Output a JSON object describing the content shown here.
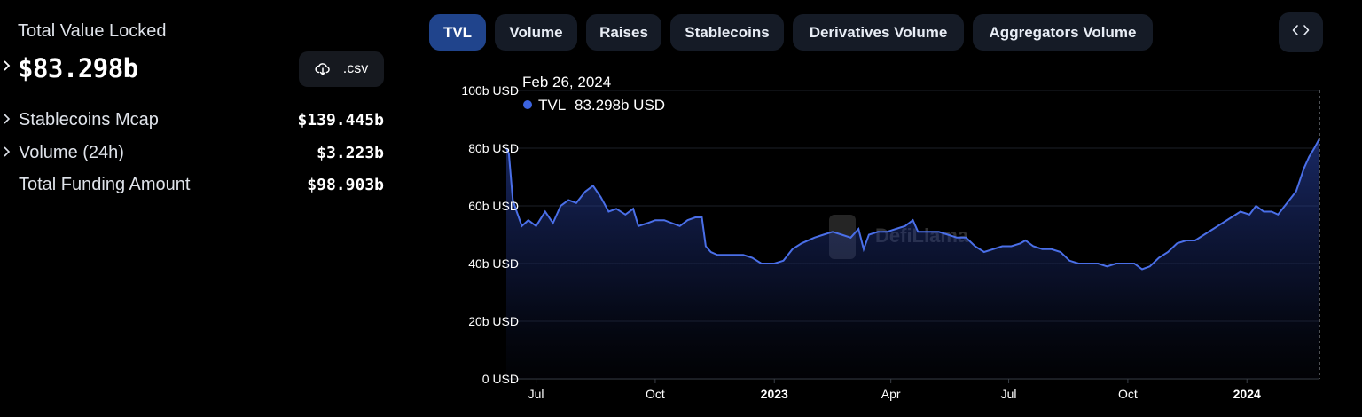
{
  "left": {
    "tvl_label": "Total Value Locked",
    "tvl_value": "$83.298b",
    "csv_label": ".csv",
    "metrics": [
      {
        "label": "Stablecoins Mcap",
        "value": "$139.445b",
        "expandable": true
      },
      {
        "label": "Volume (24h)",
        "value": "$3.223b",
        "expandable": true
      },
      {
        "label": "Total Funding Amount",
        "value": "$98.903b",
        "expandable": false
      }
    ]
  },
  "tabs": [
    {
      "label": "TVL",
      "active": true
    },
    {
      "label": "Volume",
      "active": false
    },
    {
      "label": "Raises",
      "active": false
    },
    {
      "label": "Stablecoins",
      "active": false
    },
    {
      "label": "Derivatives Volume",
      "active": false
    },
    {
      "label": "Aggregators Volume",
      "active": false
    }
  ],
  "icons": {
    "csv": "download-icon",
    "embed": "code-icon",
    "expand": "chevron-right-icon"
  },
  "colors": {
    "accent": "#3b63e0",
    "line": "#4a6fe8",
    "active_tab": "#20448c",
    "tab_bg": "#151b26"
  },
  "tooltip": {
    "date": "Feb 26, 2024",
    "series": "TVL",
    "value": "83.298b USD"
  },
  "watermark": "DefiLlama",
  "chart_data": {
    "type": "area",
    "series_name": "TVL",
    "y_unit": "USD",
    "ylim": [
      0,
      100
    ],
    "y_ticks": [
      "0 USD",
      "20b USD",
      "40b USD",
      "60b USD",
      "80b USD",
      "100b USD"
    ],
    "x_ticks": [
      {
        "label": "Jul",
        "bold": false
      },
      {
        "label": "Oct",
        "bold": false
      },
      {
        "label": "2023",
        "bold": true
      },
      {
        "label": "Apr",
        "bold": false
      },
      {
        "label": "Jul",
        "bold": false
      },
      {
        "label": "Oct",
        "bold": false
      },
      {
        "label": "2024",
        "bold": true
      }
    ],
    "x_start": "2022-06-08",
    "x_end": "2024-02-26",
    "grid": true,
    "points": [
      [
        "2022-06-08",
        80
      ],
      [
        "2022-06-10",
        78
      ],
      [
        "2022-06-13",
        62
      ],
      [
        "2022-06-16",
        58
      ],
      [
        "2022-06-20",
        53
      ],
      [
        "2022-06-25",
        55
      ],
      [
        "2022-07-01",
        53
      ],
      [
        "2022-07-08",
        58
      ],
      [
        "2022-07-14",
        54
      ],
      [
        "2022-07-20",
        60
      ],
      [
        "2022-07-26",
        62
      ],
      [
        "2022-08-01",
        61
      ],
      [
        "2022-08-08",
        65
      ],
      [
        "2022-08-14",
        67
      ],
      [
        "2022-08-20",
        63
      ],
      [
        "2022-08-26",
        58
      ],
      [
        "2022-09-01",
        59
      ],
      [
        "2022-09-08",
        57
      ],
      [
        "2022-09-14",
        59
      ],
      [
        "2022-09-18",
        53
      ],
      [
        "2022-09-25",
        54
      ],
      [
        "2022-10-01",
        55
      ],
      [
        "2022-10-08",
        55
      ],
      [
        "2022-10-14",
        54
      ],
      [
        "2022-10-20",
        53
      ],
      [
        "2022-10-26",
        55
      ],
      [
        "2022-11-01",
        56
      ],
      [
        "2022-11-06",
        56
      ],
      [
        "2022-11-09",
        46
      ],
      [
        "2022-11-13",
        44
      ],
      [
        "2022-11-18",
        43
      ],
      [
        "2022-11-25",
        43
      ],
      [
        "2022-12-01",
        43
      ],
      [
        "2022-12-08",
        43
      ],
      [
        "2022-12-15",
        42
      ],
      [
        "2022-12-22",
        40
      ],
      [
        "2023-01-01",
        40
      ],
      [
        "2023-01-08",
        41
      ],
      [
        "2023-01-15",
        45
      ],
      [
        "2023-01-22",
        47
      ],
      [
        "2023-02-01",
        49
      ],
      [
        "2023-02-08",
        50
      ],
      [
        "2023-02-15",
        51
      ],
      [
        "2023-02-22",
        50
      ],
      [
        "2023-03-01",
        49
      ],
      [
        "2023-03-07",
        52
      ],
      [
        "2023-03-11",
        45
      ],
      [
        "2023-03-15",
        50
      ],
      [
        "2023-03-22",
        51
      ],
      [
        "2023-03-29",
        51
      ],
      [
        "2023-04-05",
        52
      ],
      [
        "2023-04-12",
        53
      ],
      [
        "2023-04-18",
        55
      ],
      [
        "2023-04-22",
        51
      ],
      [
        "2023-05-01",
        51
      ],
      [
        "2023-05-08",
        51
      ],
      [
        "2023-05-15",
        50
      ],
      [
        "2023-05-22",
        49
      ],
      [
        "2023-05-29",
        49
      ],
      [
        "2023-06-05",
        46
      ],
      [
        "2023-06-12",
        44
      ],
      [
        "2023-06-19",
        45
      ],
      [
        "2023-06-26",
        46
      ],
      [
        "2023-07-03",
        46
      ],
      [
        "2023-07-10",
        47
      ],
      [
        "2023-07-14",
        48
      ],
      [
        "2023-07-20",
        46
      ],
      [
        "2023-07-27",
        45
      ],
      [
        "2023-08-03",
        45
      ],
      [
        "2023-08-10",
        44
      ],
      [
        "2023-08-17",
        41
      ],
      [
        "2023-08-24",
        40
      ],
      [
        "2023-09-01",
        40
      ],
      [
        "2023-09-08",
        40
      ],
      [
        "2023-09-15",
        39
      ],
      [
        "2023-09-22",
        40
      ],
      [
        "2023-09-29",
        40
      ],
      [
        "2023-10-06",
        40
      ],
      [
        "2023-10-12",
        38
      ],
      [
        "2023-10-18",
        39
      ],
      [
        "2023-10-25",
        42
      ],
      [
        "2023-11-01",
        44
      ],
      [
        "2023-11-08",
        47
      ],
      [
        "2023-11-15",
        48
      ],
      [
        "2023-11-22",
        48
      ],
      [
        "2023-11-29",
        50
      ],
      [
        "2023-12-06",
        52
      ],
      [
        "2023-12-13",
        54
      ],
      [
        "2023-12-20",
        56
      ],
      [
        "2023-12-27",
        58
      ],
      [
        "2024-01-03",
        57
      ],
      [
        "2024-01-08",
        60
      ],
      [
        "2024-01-14",
        58
      ],
      [
        "2024-01-20",
        58
      ],
      [
        "2024-01-25",
        57
      ],
      [
        "2024-02-01",
        61
      ],
      [
        "2024-02-08",
        65
      ],
      [
        "2024-02-14",
        73
      ],
      [
        "2024-02-18",
        77
      ],
      [
        "2024-02-22",
        80
      ],
      [
        "2024-02-26",
        83.298
      ]
    ]
  }
}
